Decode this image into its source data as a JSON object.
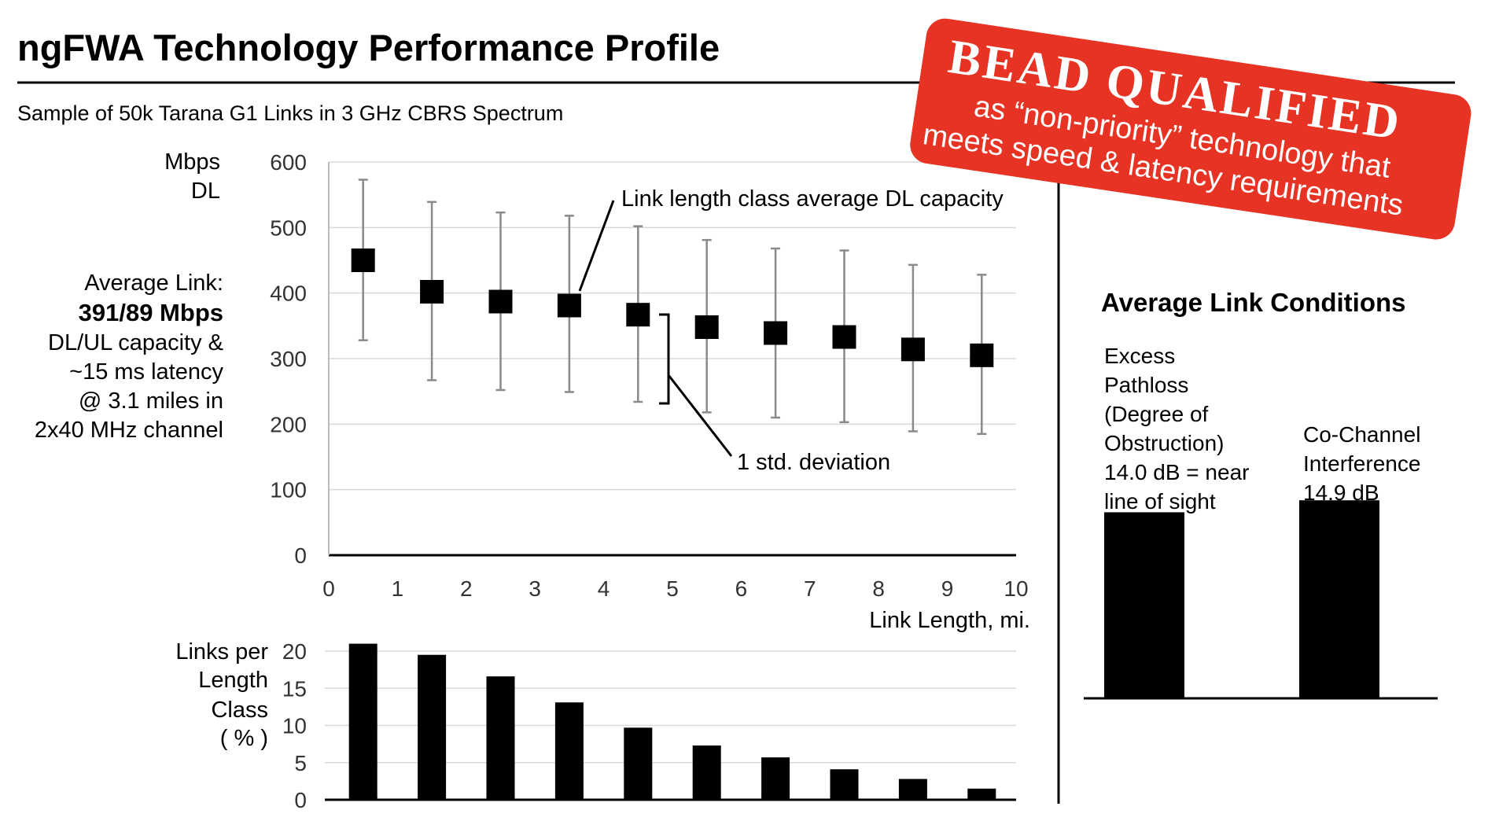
{
  "page": {
    "title": "ngFWA Technology Performance Profile",
    "subtitle": "Sample of 50k Tarana G1 Links in 3 GHz CBRS Spectrum"
  },
  "stamp": {
    "heading": "BEAD QUALIFIED",
    "line1": "as “non-priority” technology that",
    "line2": "meets speed & latency requirements",
    "color": "#e63323"
  },
  "side_summary": {
    "line1": "Average Link:",
    "line2": "391/89 Mbps",
    "line3": "DL/UL capacity &",
    "line4": "~15 ms latency",
    "line5": "@ 3.1 miles in",
    "line6": "2x40 MHz channel"
  },
  "annotations": {
    "average_label": "Link length class average DL capacity",
    "stddev_label": "1 std. deviation"
  },
  "conditions": {
    "heading": "Average Link Conditions",
    "pathloss_lines": [
      "Excess",
      "Pathloss",
      "(Degree of",
      "Obstruction)",
      "14.0 dB = near",
      "line of sight"
    ],
    "interference_lines": [
      "Co-Channel",
      "Interference",
      "14.9 dB"
    ]
  },
  "chart_data": [
    {
      "type": "scatter",
      "ylabel_lines": [
        "Mbps",
        "DL"
      ],
      "xlabel": "Link Length, mi.",
      "xlim": [
        0,
        10
      ],
      "ylim": [
        0,
        600
      ],
      "xticks": [
        "0",
        "1",
        "2",
        "3",
        "4",
        "5",
        "6",
        "7",
        "8",
        "9",
        "10"
      ],
      "yticks": [
        "0",
        "100",
        "200",
        "300",
        "400",
        "500",
        "600"
      ],
      "grid": true,
      "marker": "square",
      "x": [
        0.5,
        1.5,
        2.5,
        3.5,
        4.5,
        5.5,
        6.5,
        7.5,
        8.5,
        9.5
      ],
      "mean": [
        450,
        402,
        387,
        381,
        367,
        348,
        339,
        333,
        314,
        305
      ],
      "upper": [
        573,
        539,
        523,
        518,
        502,
        481,
        468,
        465,
        443,
        428
      ],
      "lower": [
        328,
        267,
        252,
        249,
        234,
        218,
        210,
        203,
        189,
        185
      ]
    },
    {
      "type": "bar",
      "ylabel_lines": [
        "Links per",
        "Length",
        "Class",
        "( % )"
      ],
      "ylim": [
        0,
        20
      ],
      "yticks": [
        "0",
        "5",
        "10",
        "15",
        "20"
      ],
      "x": [
        0.5,
        1.5,
        2.5,
        3.5,
        4.5,
        5.5,
        6.5,
        7.5,
        8.5,
        9.5
      ],
      "values": [
        21.0,
        19.5,
        16.6,
        13.1,
        9.7,
        7.3,
        5.7,
        4.1,
        2.8,
        1.5
      ]
    },
    {
      "type": "bar",
      "categories": [
        "Excess Pathloss",
        "Co-Channel Interference"
      ],
      "values": [
        14.0,
        14.9
      ],
      "units": "dB",
      "ylim": [
        0,
        15.8
      ]
    }
  ]
}
